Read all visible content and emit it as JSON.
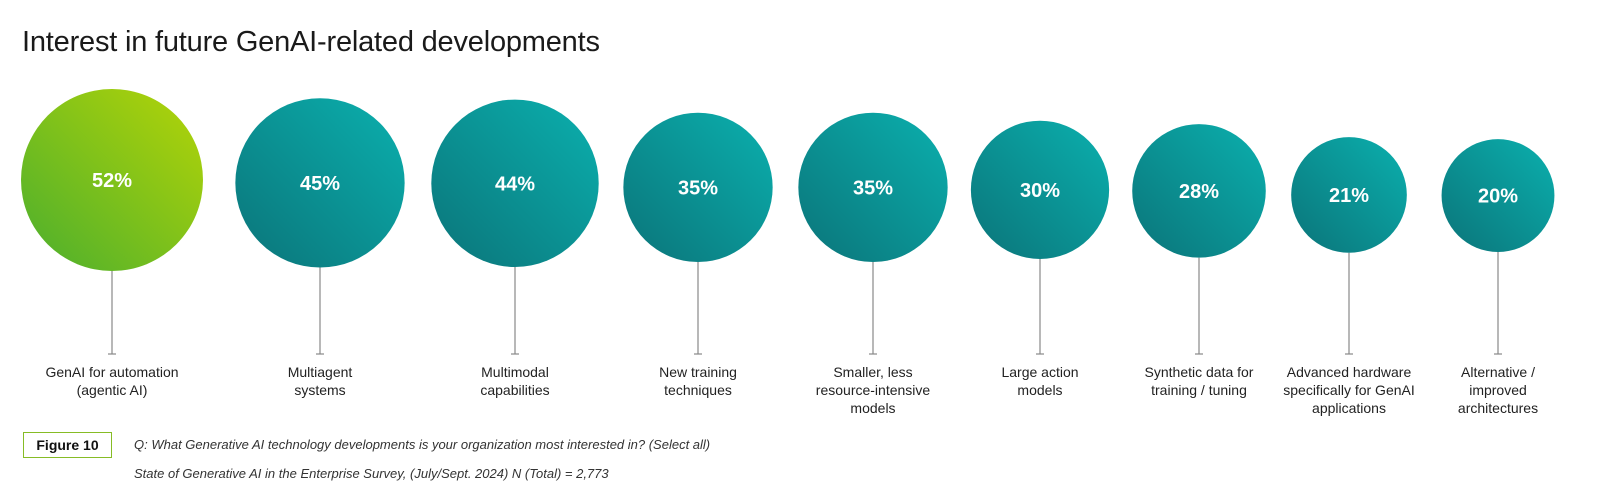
{
  "chart_data": {
    "type": "bubble",
    "title": "Interest in future GenAI-related developments",
    "categories": [
      "GenAI for automation\n(agentic AI)",
      "Multiagent\nsystems",
      "Multimodal\ncapabilities",
      "New training\ntechniques",
      "Smaller, less\nresource-intensive\nmodels",
      "Large action\nmodels",
      "Synthetic data for\ntraining / tuning",
      "Advanced hardware\nspecifically for GenAI\napplications",
      "Alternative /\nimproved\narchitectures"
    ],
    "values": [
      52,
      45,
      44,
      35,
      35,
      30,
      28,
      21,
      20
    ],
    "value_labels": [
      "52%",
      "45%",
      "44%",
      "35%",
      "35%",
      "30%",
      "28%",
      "21%",
      "20%"
    ],
    "unit": "%",
    "highlight_index": 0
  },
  "colors": {
    "highlight_start": "#4aae2e",
    "highlight_end": "#b5d507",
    "bubble_start": "#0b7479",
    "bubble_end": "#0bb0ae",
    "stem": "#888888",
    "figure_border": "#86bc25"
  },
  "footer": {
    "figure_label": "Figure 10",
    "question": "Q: What Generative AI technology developments is your organization most interested in? (Select all)",
    "source": "State of Generative AI in the Enterprise Survey, (July/Sept. 2024) N (Total) = 2,773"
  }
}
